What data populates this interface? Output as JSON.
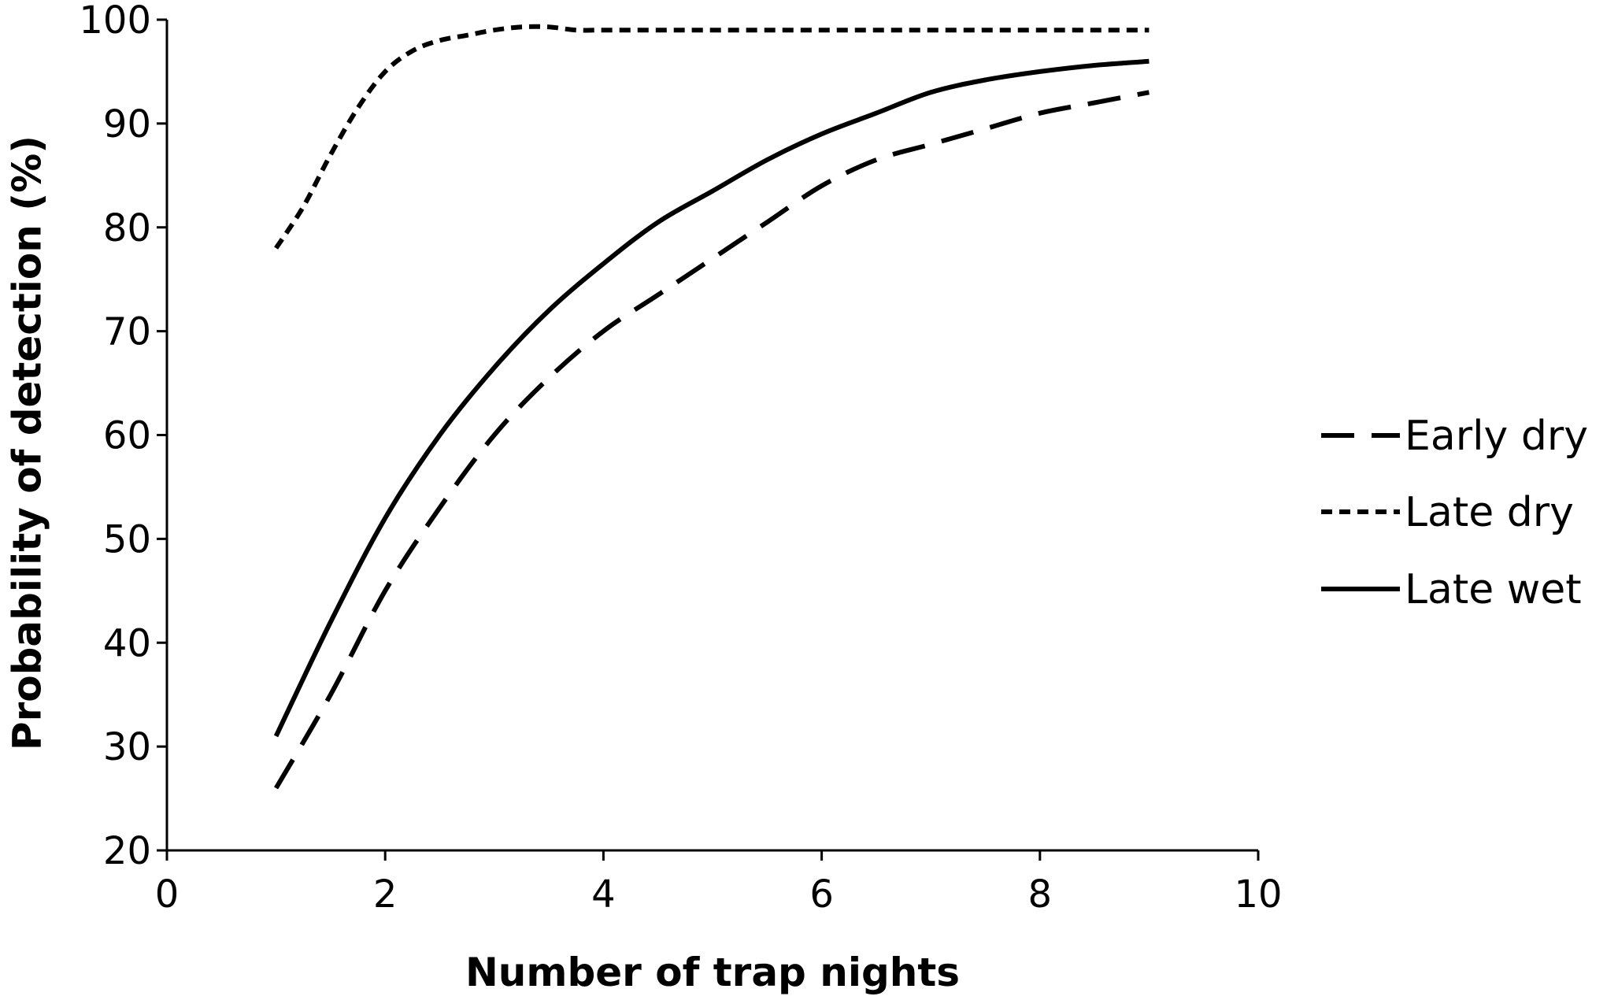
{
  "chart_data": {
    "type": "line",
    "title": "",
    "xlabel": "Number of trap nights",
    "ylabel": "Probability of detection (%)",
    "xlim": [
      0,
      10
    ],
    "ylim": [
      20,
      100
    ],
    "x_ticks": [
      0,
      2,
      4,
      6,
      8,
      10
    ],
    "y_ticks": [
      20,
      30,
      40,
      50,
      60,
      70,
      80,
      90,
      100
    ],
    "grid": false,
    "legend_position": "right",
    "series": [
      {
        "name": "Early dry",
        "line_style": "long-dash",
        "color": "#000000",
        "x": [
          1,
          1.5,
          2,
          2.5,
          3,
          3.5,
          4,
          4.5,
          5,
          5.5,
          6,
          6.5,
          7,
          7.5,
          8,
          8.5,
          9
        ],
        "y": [
          26,
          35,
          45,
          53,
          60,
          65.5,
          70,
          73.5,
          77,
          80.5,
          84,
          86.5,
          88,
          89.5,
          91,
          92,
          93
        ]
      },
      {
        "name": "Late dry",
        "line_style": "short-dash",
        "color": "#000000",
        "x": [
          1,
          1.25,
          1.5,
          1.75,
          2,
          2.25,
          2.5,
          2.75,
          3,
          3.25,
          3.5,
          3.75,
          4,
          4.5,
          5,
          6,
          7,
          8,
          9
        ],
        "y": [
          78,
          82,
          87,
          91.5,
          95,
          97,
          98,
          98.5,
          99,
          99.3,
          99.3,
          99,
          99,
          99,
          99,
          99,
          99,
          99,
          99
        ]
      },
      {
        "name": "Late wet",
        "line_style": "solid",
        "color": "#000000",
        "x": [
          1,
          1.5,
          2,
          2.5,
          3,
          3.5,
          4,
          4.5,
          5,
          5.5,
          6,
          6.5,
          7,
          7.5,
          8,
          8.5,
          9
        ],
        "y": [
          31,
          42,
          52,
          60,
          66.5,
          72,
          76.5,
          80.5,
          83.5,
          86.5,
          89,
          91,
          93,
          94.2,
          95,
          95.6,
          96
        ]
      }
    ]
  }
}
